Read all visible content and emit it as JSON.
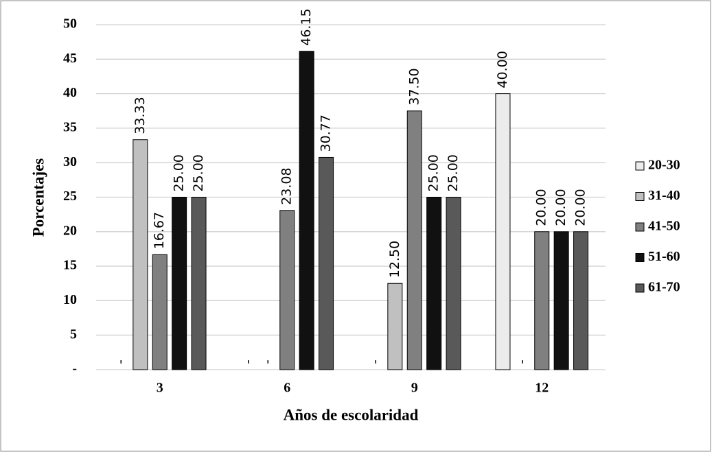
{
  "chart_data": {
    "type": "bar",
    "x_label": "Años de escolaridad",
    "y_label": "Porcentajes",
    "categories": [
      "3",
      "6",
      "9",
      "12"
    ],
    "series": [
      {
        "name": "20-30",
        "color": "#ececec",
        "values": [
          0,
          0,
          0,
          40.0
        ],
        "value_labels": [
          "-",
          "-",
          "-",
          "40.00"
        ]
      },
      {
        "name": "31-40",
        "color": "#c0c0c0",
        "values": [
          33.33,
          0,
          12.5,
          0
        ],
        "value_labels": [
          "33.33",
          "-",
          "12.50",
          "-"
        ]
      },
      {
        "name": "41-50",
        "color": "#808080",
        "values": [
          16.67,
          23.08,
          37.5,
          20.0
        ],
        "value_labels": [
          "16.67",
          "23.08",
          "37.50",
          "20.00"
        ]
      },
      {
        "name": "51-60",
        "color": "#111111",
        "values": [
          25.0,
          46.15,
          25.0,
          20.0
        ],
        "value_labels": [
          "25.00",
          "46.15",
          "25.00",
          "20.00"
        ]
      },
      {
        "name": "61-70",
        "color": "#595959",
        "values": [
          25.0,
          30.77,
          25.0,
          20.0
        ],
        "value_labels": [
          "25.00",
          "30.77",
          "25.00",
          "20.00"
        ]
      }
    ],
    "ylim": [
      0,
      50
    ],
    "yticks": [
      {
        "value": 0,
        "label": "-"
      },
      5,
      10,
      15,
      20,
      25,
      30,
      35,
      40,
      45,
      50
    ],
    "grid": true,
    "legend": "right"
  }
}
